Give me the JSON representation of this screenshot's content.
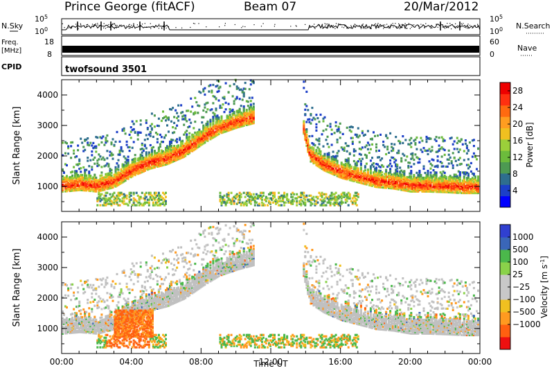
{
  "header": {
    "station": "Prince George (fitACF)",
    "beam": "Beam 07",
    "date": "20/Mar/2012"
  },
  "strip_labels": {
    "nsky": "N.Sky",
    "nsky_ticks": [
      "10^5",
      "10^0"
    ],
    "nsearch": "N.Search",
    "freq": "Freq.",
    "freq_unit": "[MHz]",
    "freq_ticks": [
      "18",
      "8"
    ],
    "nave": "Nave",
    "nave_ticks": [
      "60",
      "0"
    ],
    "cpid": "CPID",
    "cpid_value": "twofsound 3501"
  },
  "colors": {
    "power_scale": [
      "#0000ff",
      "#1c3fc8",
      "#2e6e8e",
      "#4d9a52",
      "#6cbb3c",
      "#9bcf3a",
      "#f0c020",
      "#ff9d20",
      "#ff6a10",
      "#ff3010",
      "#ee0000"
    ],
    "velocity_scale": [
      "#3040d0",
      "#3a66b8",
      "#2f8a80",
      "#4bb84b",
      "#8ad24a",
      "#c8c8c8",
      "#c8c8c8",
      "#f0c020",
      "#ff9a20",
      "#ff6010",
      "#ee1010"
    ],
    "ground_scatter": "#c0c0c0"
  },
  "chart_data": [
    {
      "type": "heatmap",
      "name": "power",
      "xlabel": "",
      "ylabel": "Slant Range [km]",
      "x_ticks": [
        "00:00",
        "04:00",
        "08:00",
        "12:00",
        "16:00",
        "20:00",
        "00:00"
      ],
      "y_ticks": [
        1000,
        2000,
        3000,
        4000
      ],
      "ylim": [
        180,
        4500
      ],
      "xlim_hours": [
        0,
        24
      ],
      "colorbar_label": "Power [dB]",
      "colorbar_ticks": [
        4,
        8,
        12,
        16,
        20,
        24,
        28
      ],
      "colorbar_range": [
        0,
        30
      ],
      "features": [
        {
          "label": "west band",
          "t": [
            0,
            1,
            2,
            3,
            4,
            5,
            6,
            7,
            8,
            9,
            10,
            11
          ],
          "r": [
            1000,
            1050,
            1000,
            1150,
            1500,
            1750,
            1900,
            2150,
            2550,
            2900,
            3100,
            3250
          ],
          "peak_db": 28
        },
        {
          "label": "east band",
          "t": [
            13.8,
            14.2,
            15,
            16,
            17,
            18,
            19,
            20,
            21,
            22,
            23,
            24
          ],
          "r": [
            3000,
            2000,
            1700,
            1450,
            1300,
            1150,
            1100,
            1000,
            1000,
            980,
            950,
            950
          ],
          "peak_db": 28
        }
      ]
    },
    {
      "type": "heatmap",
      "name": "velocity",
      "xlabel": "Time UT",
      "ylabel": "Slant Range [km]",
      "x_ticks": [
        "00:00",
        "04:00",
        "08:00",
        "12:00",
        "16:00",
        "20:00",
        "00:00"
      ],
      "y_ticks": [
        1000,
        2000,
        3000,
        4000
      ],
      "ylim": [
        180,
        4500
      ],
      "xlim_hours": [
        0,
        24
      ],
      "colorbar_label": "Velocity [m s^-1]",
      "colorbar_ticks": [
        "1000",
        "500",
        "100",
        "25",
        "−25",
        "−100",
        "−500",
        "−1000"
      ],
      "colorbar_range": [
        -1200,
        1200
      ]
    }
  ]
}
